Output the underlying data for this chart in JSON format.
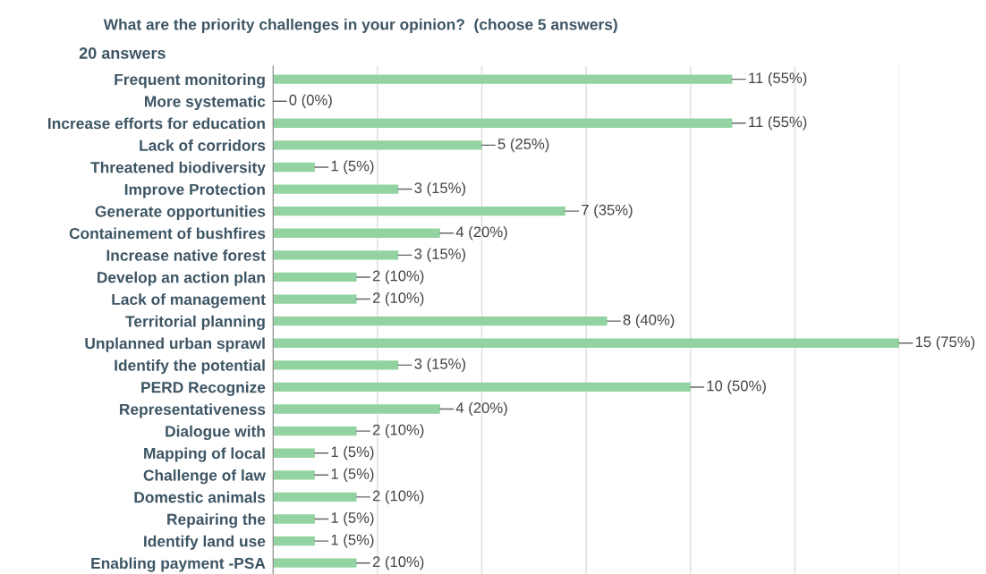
{
  "chart_data": {
    "type": "bar",
    "orientation": "horizontal",
    "title": "What are the priority challenges in your opinion?  (choose 5 answers)",
    "subtitle": "20 answers",
    "categories": [
      "Frequent monitoring",
      "More systematic",
      "Increase efforts for education",
      "Lack of corridors",
      "Threatened biodiversity",
      "Improve Protection",
      "Generate opportunities",
      "Containement of bushfires",
      "Increase native forest",
      "Develop an action plan",
      "Lack of management",
      "Territorial planning",
      "Unplanned urban sprawl",
      "Identify the potential",
      "PERD Recognize",
      "Representativeness",
      "Dialogue with",
      "Mapping of local",
      "Challenge of law",
      "Domestic animals",
      "Repairing the",
      "Identify land use",
      "Enabling payment -PSA"
    ],
    "values": [
      11,
      0,
      11,
      5,
      1,
      3,
      7,
      4,
      3,
      2,
      2,
      8,
      15,
      3,
      10,
      4,
      2,
      1,
      1,
      2,
      1,
      1,
      2
    ],
    "value_labels": [
      "11 (55%)",
      "0 (0%)",
      "11 (55%)",
      "5 (25%)",
      "1 (5%)",
      "3 (15%)",
      "7 (35%)",
      "4 (20%)",
      "3 (15%)",
      "2 (10%)",
      "2 (10%)",
      "8 (40%)",
      "15 (75%)",
      "3 (15%)",
      "10 (50%)",
      "4 (20%)",
      "2 (10%)",
      "1 (5%)",
      "1 (5%)",
      "2 (10%)",
      "1 (5%)",
      "1 (5%)",
      "2 (10%)"
    ],
    "color": "#93d3a2",
    "xlim": [
      0,
      15
    ],
    "xticks": [
      {
        "value": 0,
        "label": null
      },
      {
        "value": 2.5,
        "label": null
      },
      {
        "value": 5,
        "label": null
      },
      {
        "value": 7.5,
        "label": null
      },
      {
        "value": 10,
        "label": null
      },
      {
        "value": 12.5,
        "label": null
      },
      {
        "value": 15,
        "label": null
      }
    ],
    "grid": "x",
    "tick_labels": "y"
  }
}
